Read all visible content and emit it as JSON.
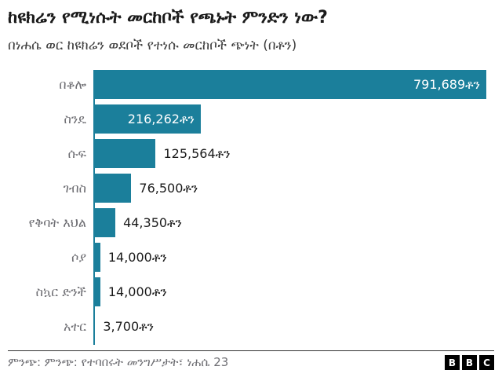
{
  "header": {
    "title": "ከዩክሬን የሚነሱት መርከቦች የጫኑት ምንድን ነው?",
    "subtitle": "በነሐሴ ወር ከዩክሬን ወደቦች የተነሱ መርከቦች ጭነት (በቶን)"
  },
  "chart_data": {
    "type": "bar",
    "orientation": "horizontal",
    "title": "ከዩክሬን የሚነሱት መርከቦች የጫኑት ምንድን ነው?",
    "subtitle": "በነሐሴ ወር ከዩክሬን ወደቦች የተነሱ መርከቦች ጭነት (በቶን)",
    "categories": [
      "በቆሎ",
      "ስንዴ",
      "ሱፍ",
      "ገብስ",
      "የቅባት እህል",
      "ሶያ",
      "ስኳር ድንች",
      "አተር"
    ],
    "values": [
      791689,
      216262,
      125564,
      76500,
      44350,
      14000,
      14000,
      3700
    ],
    "value_labels": [
      "791,689ቶን",
      "216,262ቶን",
      "125,564ቶን",
      "76,500ቶን",
      "44,350ቶን",
      "14,000ቶን",
      "14,000ቶን",
      "3,700ቶን"
    ],
    "value_label_inside": [
      true,
      true,
      false,
      false,
      false,
      false,
      false,
      false
    ],
    "unit": "ቶን",
    "xlim": [
      0,
      791689
    ],
    "grid": false,
    "legend": false,
    "bar_color": "#1b7f9b"
  },
  "footer": {
    "source": "ምንጭ: ምንጭ: የተባበሩት መንግሥታት፣ ነሐሴ 23",
    "logo_letters": [
      "B",
      "B",
      "C"
    ]
  },
  "colors": {
    "accent_teal": "#1b7f9b",
    "title_text": "#1a1a1a",
    "subtitle_text": "#404040",
    "category_text": "#6e6e73",
    "value_text_outside": "#1a1a1a",
    "value_text_inside": "#ffffff",
    "divider": "#333333",
    "logo_bg": "#000000",
    "logo_text": "#ffffff"
  }
}
